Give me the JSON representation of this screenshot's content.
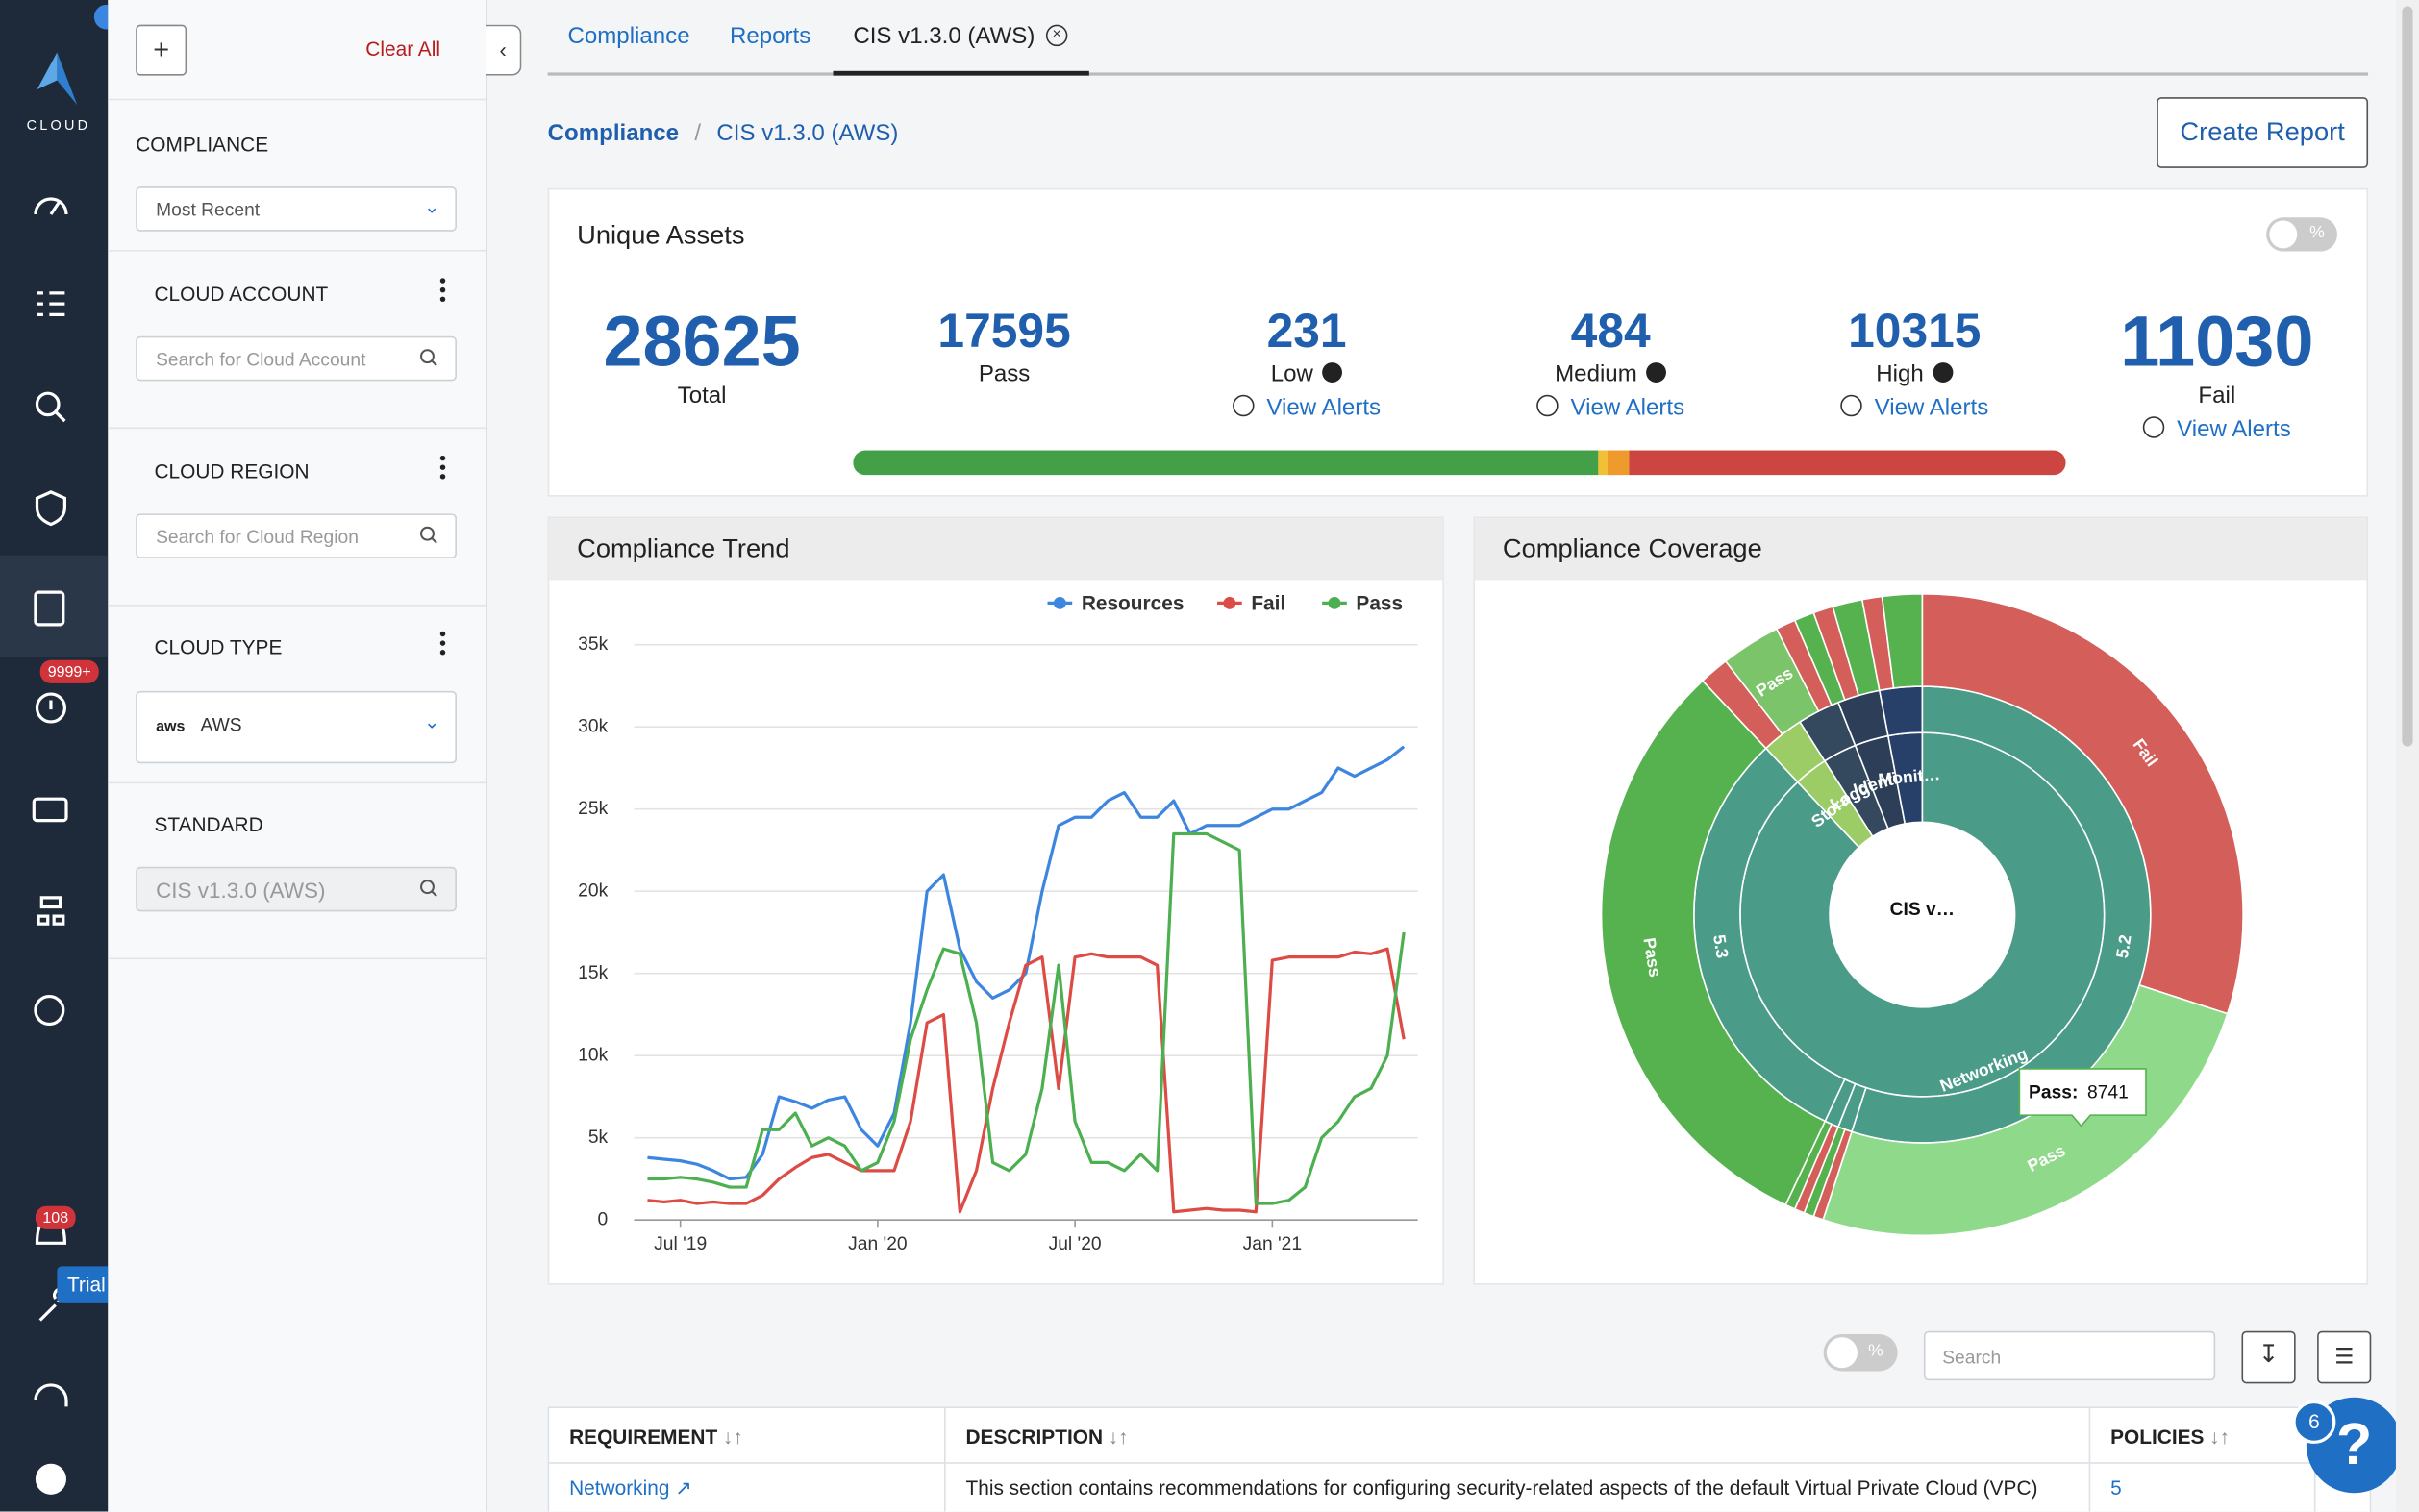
{
  "nav": {
    "logo": "CLOUD",
    "badge_alerts": "9999+",
    "badge_notifications": "108",
    "badge_trial": "Trial"
  },
  "filters": {
    "add": "+",
    "clear_all": "Clear All",
    "compliance": {
      "label": "COMPLIANCE",
      "value": "Most Recent"
    },
    "cloud_account": {
      "label": "CLOUD ACCOUNT",
      "placeholder": "Search for Cloud Account"
    },
    "cloud_region": {
      "label": "CLOUD REGION",
      "placeholder": "Search for Cloud Region"
    },
    "cloud_type": {
      "label": "CLOUD TYPE",
      "logo": "aws",
      "value": "AWS"
    },
    "standard": {
      "label": "STANDARD",
      "value": "CIS v1.3.0 (AWS)"
    }
  },
  "tabs": [
    "Compliance",
    "Reports",
    "CIS v1.3.0 (AWS)"
  ],
  "breadcrumb": {
    "items": [
      "Compliance",
      "CIS v1.3.0 (AWS)"
    ],
    "separator": "/"
  },
  "create_report": "Create Report",
  "unique_assets": {
    "title": "Unique Assets",
    "toggle": "%",
    "metrics": [
      {
        "value": 28625,
        "label": "Total"
      },
      {
        "value": 17595,
        "label": "Pass",
        "color": "#43a047"
      },
      {
        "value": 231,
        "label": "Low",
        "link": "View Alerts",
        "color": "#f2c037"
      },
      {
        "value": 484,
        "label": "Medium",
        "link": "View Alerts",
        "color": "#ee9a2c"
      },
      {
        "value": 10315,
        "label": "High",
        "link": "View Alerts",
        "color": "#cc4540"
      },
      {
        "value": 11030,
        "label": "Fail",
        "link": "View Alerts"
      }
    ]
  },
  "compliance_trend": {
    "type": "line",
    "title": "Compliance Trend",
    "categories": [
      null,
      null,
      "Jul '19",
      null,
      null,
      null,
      null,
      null,
      null,
      null,
      null,
      null,
      null,
      null,
      "Jan '20",
      null,
      null,
      null,
      null,
      null,
      null,
      null,
      null,
      null,
      null,
      null,
      "Jul '20",
      null,
      null,
      null,
      null,
      null,
      null,
      null,
      null,
      null,
      null,
      null,
      "Jan '21",
      null,
      null,
      null,
      null,
      null,
      null,
      null,
      null
    ],
    "series": [
      {
        "name": "Resources",
        "color": "#3d86e0",
        "values": [
          3800,
          3700,
          3600,
          3400,
          3000,
          2500,
          2600,
          4000,
          7500,
          7200,
          6800,
          7300,
          7500,
          5500,
          4500,
          6500,
          12000,
          20000,
          21000,
          16500,
          14500,
          13500,
          14000,
          15000,
          20000,
          24000,
          24500,
          24500,
          25500,
          26000,
          24500,
          24500,
          25500,
          23500,
          24000,
          24000,
          24000,
          24500,
          25000,
          25000,
          25500,
          26000,
          27500,
          27000,
          27500,
          28000,
          28800
        ]
      },
      {
        "name": "Fail",
        "color": "#dd4b45",
        "values": [
          1200,
          1100,
          1200,
          1000,
          1100,
          1000,
          1000,
          1500,
          2500,
          3200,
          3800,
          4000,
          3500,
          3000,
          3000,
          3000,
          6000,
          12000,
          12500,
          500,
          3000,
          8000,
          12000,
          15500,
          16000,
          8000,
          16000,
          16200,
          16000,
          16000,
          16000,
          15500,
          500,
          600,
          700,
          600,
          600,
          500,
          15800,
          16000,
          16000,
          16000,
          16000,
          16300,
          16200,
          16500,
          11000
        ]
      },
      {
        "name": "Pass",
        "color": "#4caf50",
        "values": [
          2500,
          2500,
          2600,
          2500,
          2300,
          2000,
          2000,
          5500,
          5500,
          6500,
          4500,
          5000,
          4500,
          3000,
          3500,
          6000,
          11000,
          14000,
          16500,
          16200,
          12000,
          3500,
          3000,
          4000,
          8000,
          15500,
          6000,
          3500,
          3500,
          3000,
          4000,
          3000,
          23500,
          23500,
          23500,
          23000,
          22500,
          1000,
          1000,
          1200,
          2000,
          5000,
          6000,
          7500,
          8000,
          10000,
          17500
        ]
      }
    ],
    "ylim": [
      0,
      35000
    ],
    "yticks": [
      0,
      {
        "value": 5000,
        "label": "5k"
      },
      {
        "value": 10000,
        "label": "10k"
      },
      {
        "value": 15000,
        "label": "15k"
      },
      {
        "value": 20000,
        "label": "20k"
      },
      {
        "value": 25000,
        "label": "25k"
      },
      {
        "value": 30000,
        "label": "30k"
      },
      {
        "value": 35000,
        "label": "35k"
      }
    ],
    "grid": true
  },
  "compliance_coverage": {
    "type": "sunburst",
    "title": "Compliance Coverage",
    "center_label": "CIS v…",
    "rings": [
      [
        {
          "label": "Networking",
          "value": 88,
          "color": "#4a9c88"
        },
        {
          "label": "Stora…",
          "value": 3,
          "color": "#9ccc65"
        },
        {
          "label": "Loggi…",
          "value": 3,
          "color": "#34495e"
        },
        {
          "label": "Identi…",
          "value": 3,
          "color": "#2c3e58"
        },
        {
          "label": "Monit…",
          "value": 3,
          "color": "#27406a"
        }
      ],
      [
        {
          "label": "5.2",
          "value": 55,
          "color": "#4a9c88"
        },
        {
          "label": null,
          "value": 1,
          "color": "#4a9c88"
        },
        {
          "label": null,
          "value": 1,
          "color": "#4a9c88"
        },
        {
          "label": "5.3",
          "value": 31,
          "color": "#4a9c88"
        },
        {
          "label": null,
          "value": 3,
          "color": "#9ccc65"
        },
        {
          "label": null,
          "value": 3,
          "color": "#34495e"
        },
        {
          "label": null,
          "value": 3,
          "color": "#2c3e58"
        },
        {
          "label": null,
          "value": 3,
          "color": "#27406a"
        }
      ],
      [
        {
          "label": "Fail",
          "value": 30,
          "color": "#d35e5a"
        },
        {
          "label": "Pass",
          "value": 25,
          "color": "#8fd98a"
        },
        {
          "label": null,
          "value": 0.5,
          "color": "#d35e5a"
        },
        {
          "label": null,
          "value": 0.5,
          "color": "#55b24f"
        },
        {
          "label": null,
          "value": 0.5,
          "color": "#d35e5a"
        },
        {
          "label": null,
          "value": 0.5,
          "color": "#55b24f"
        },
        {
          "label": "Pass",
          "value": 31,
          "color": "#55b24f"
        },
        {
          "label": null,
          "value": 1.5,
          "color": "#d35e5a"
        },
        {
          "label": "Pass",
          "value": 3,
          "color": "#7cc46a"
        },
        {
          "label": null,
          "value": 1,
          "color": "#d35e5a"
        },
        {
          "label": null,
          "value": 1,
          "color": "#55b24f"
        },
        {
          "label": null,
          "value": 1,
          "color": "#d35e5a"
        },
        {
          "label": null,
          "value": 1.5,
          "color": "#55b24f"
        },
        {
          "label": null,
          "value": 1,
          "color": "#d35e5a"
        },
        {
          "label": null,
          "value": 2,
          "color": "#55b24f"
        }
      ]
    ],
    "tooltip": {
      "label": "Pass:",
      "value": 8741
    }
  },
  "table": {
    "toggle": "%",
    "search": "Search",
    "columns": [
      "REQUIREMENT",
      "DESCRIPTION",
      "POLICIES"
    ],
    "rows": [
      [
        "Networking",
        "This section contains recommendations for configuring security-related aspects of the default Virtual Private Cloud (VPC)",
        5
      ]
    ]
  },
  "help": {
    "badge": 6,
    "icon": "?"
  }
}
